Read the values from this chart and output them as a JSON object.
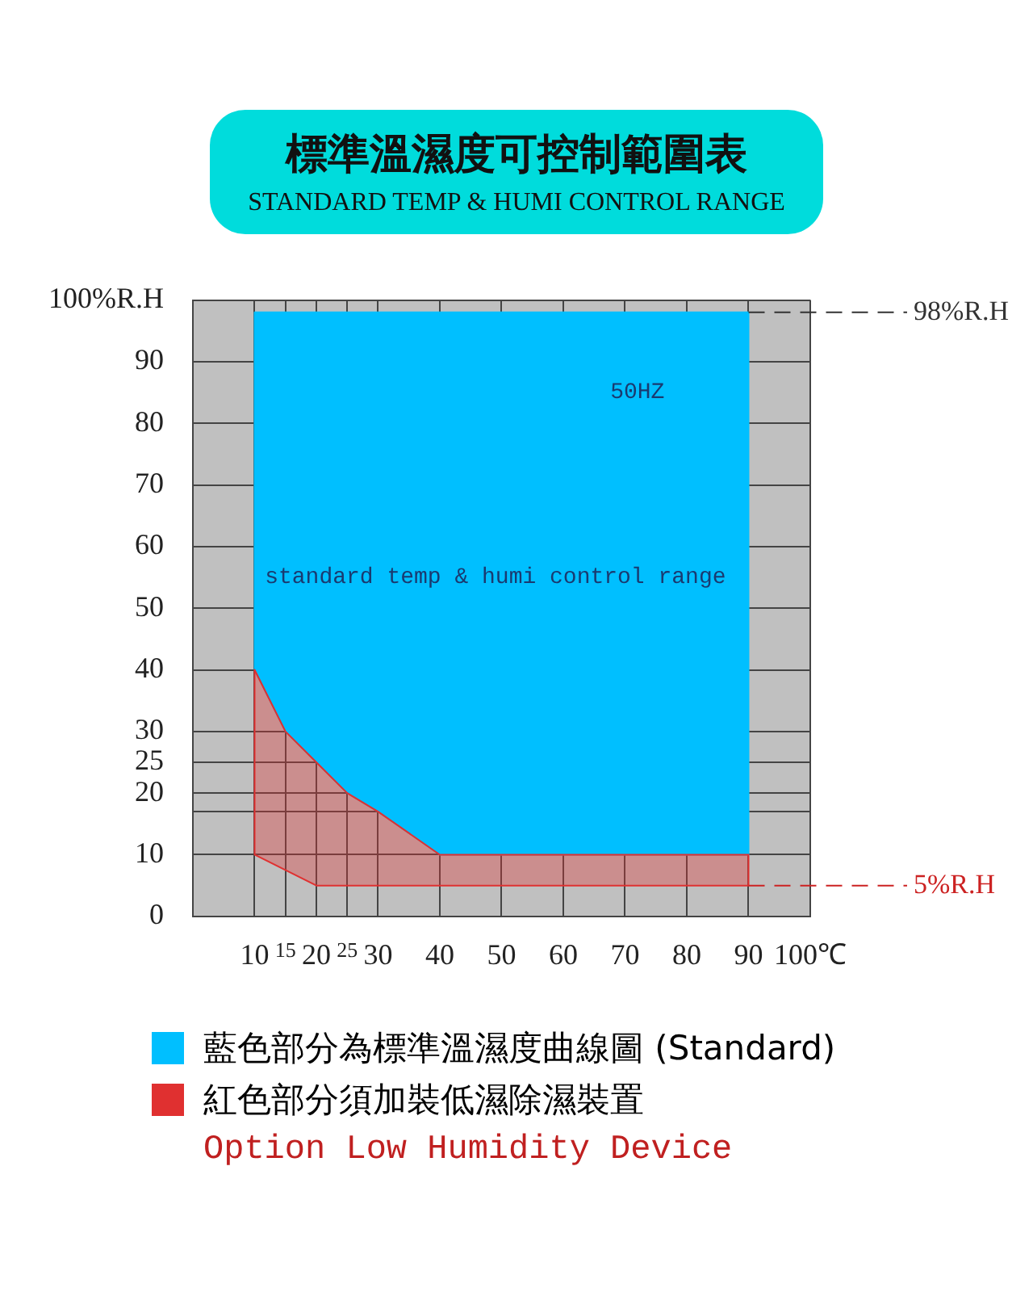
{
  "chart_data": {
    "type": "area",
    "title": "標準溫濕度可控制範圍表",
    "subtitle": "STANDARD TEMP & HUMI CONTROL RANGE",
    "series": [
      {
        "name": "藍色部分為標準溫濕度曲線圖 (Standard)",
        "color": "#00bfff",
        "x": [
          10,
          10,
          90,
          90,
          40,
          30,
          25,
          20,
          15,
          10
        ],
        "values": [
          40,
          98,
          98,
          10,
          10,
          17,
          20,
          25,
          30,
          40
        ]
      },
      {
        "name": "紅色部分須加裝低濕除濕裝置",
        "color": "#e03030",
        "x": [
          10,
          10,
          20,
          90,
          90,
          40,
          30,
          25,
          20,
          15,
          10
        ],
        "values": [
          40,
          10,
          5,
          5,
          10,
          10,
          17,
          20,
          25,
          30,
          40
        ]
      }
    ],
    "xlim": [
      0,
      100
    ],
    "xticks": [
      10,
      15,
      20,
      25,
      30,
      40,
      50,
      60,
      70,
      80,
      90,
      {
        "value": 100,
        "label": "100℃"
      }
    ],
    "ylim": [
      0,
      100
    ],
    "yticks": [
      0,
      10,
      {
        "value": 17,
        "label": null
      },
      20,
      25,
      30,
      40,
      50,
      60,
      70,
      80,
      90,
      {
        "value": 100,
        "label": "100%R.H"
      }
    ],
    "ref_lines": [
      {
        "axis": "y",
        "value": 98,
        "label": "98%R.H",
        "color": "#333333",
        "line_style": "dashed"
      },
      {
        "axis": "y",
        "value": 5,
        "label": "5%R.H",
        "color": "#cc2222",
        "line_style": "dashed"
      }
    ],
    "annotations": [
      "50HZ",
      "standard temp & humi control range",
      "Option Low Humidity Device"
    ],
    "grid": true,
    "legend": "bottom",
    "marker": "none",
    "line_style": "solid"
  }
}
